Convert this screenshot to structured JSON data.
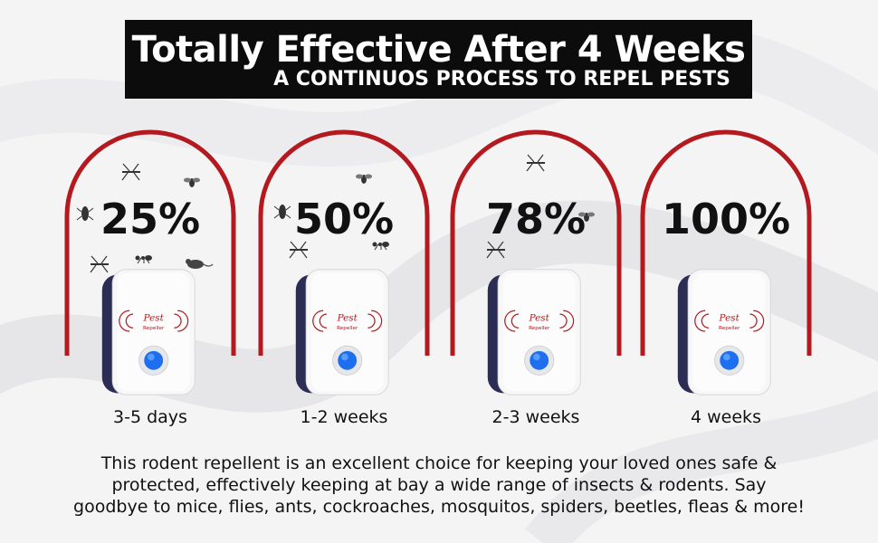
{
  "banner": {
    "title": "Totally Effective After 4 Weeks",
    "subtitle": "A CONTINUOS PROCESS TO REPEL PESTS"
  },
  "colors": {
    "arch": "#b3191e",
    "banner_bg": "#0c0c0c",
    "device_body": "#f7f7f8",
    "device_back": "#2b2d55",
    "led": "#1e6ff0"
  },
  "stages": [
    {
      "percent": "25%",
      "duration": "3-5 days"
    },
    {
      "percent": "50%",
      "duration": "1-2 weeks"
    },
    {
      "percent": "78%",
      "duration": "2-3 weeks"
    },
    {
      "percent": "100%",
      "duration": "4 weeks"
    }
  ],
  "device": {
    "logo_main": "Pest",
    "logo_sub": "Repeller"
  },
  "description": {
    "line1": "This rodent repellent is an excellent choice for keeping your loved ones safe &",
    "line2": "protected, effectively keeping at bay a wide range of insects & rodents. Say",
    "line3": "goodbye to mice, flies, ants, cockroaches, mosquitos, spiders, beetles, fleas & more!"
  },
  "icons": [
    "mosquito-icon",
    "fly-icon",
    "cockroach-icon",
    "ant-icon",
    "mouse-icon"
  ]
}
